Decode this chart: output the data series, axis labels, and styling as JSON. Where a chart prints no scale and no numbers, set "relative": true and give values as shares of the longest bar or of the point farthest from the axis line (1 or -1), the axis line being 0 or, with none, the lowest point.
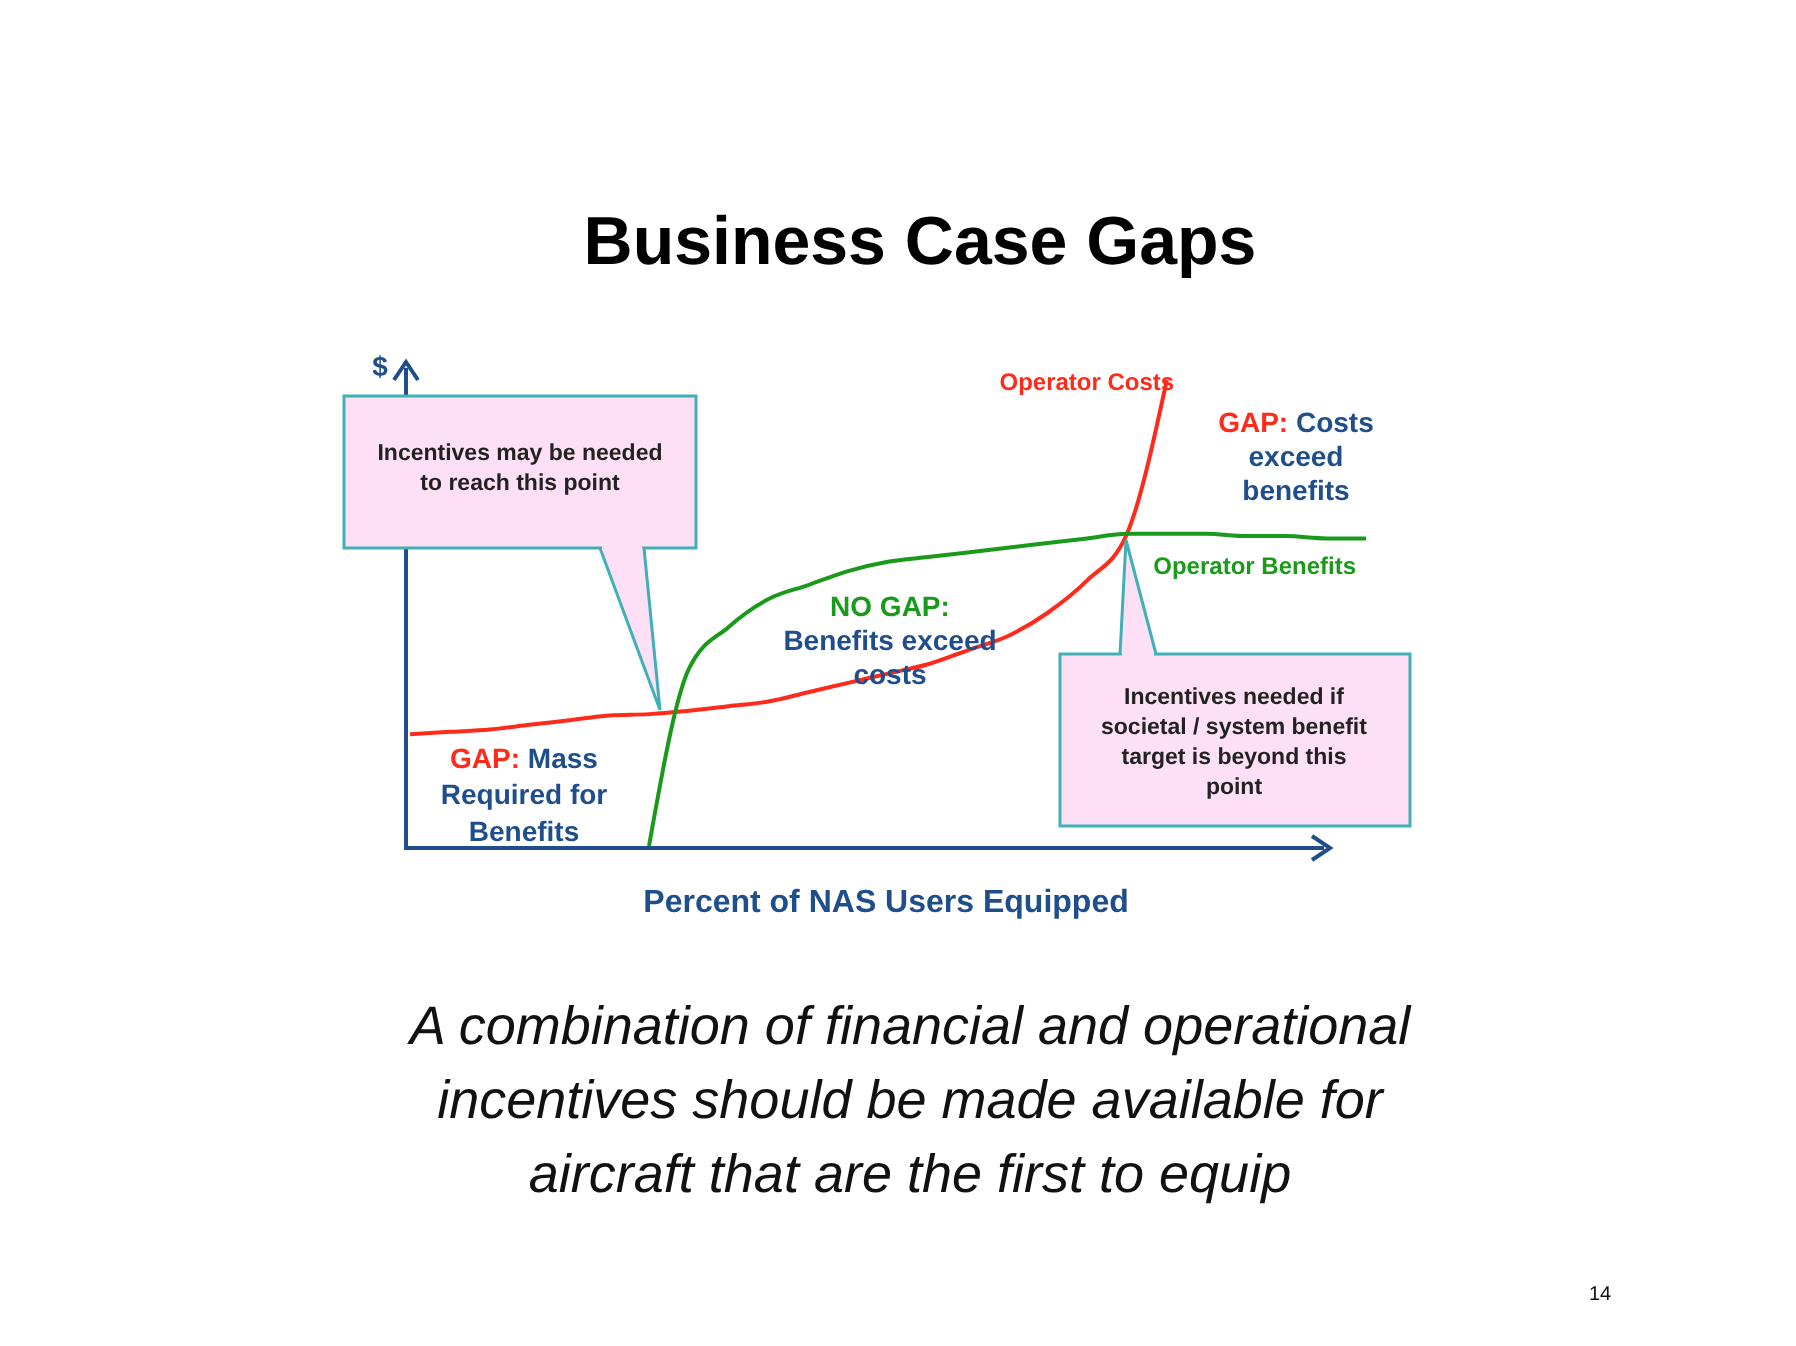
{
  "chart_data": {
    "type": "line",
    "relative": true,
    "title": "Business Case Gaps",
    "xlabel": "Percent of NAS Users Equipped",
    "ylabel": "$",
    "marker": "none",
    "line_style": "solid",
    "categories": [
      null,
      null,
      null,
      null,
      null,
      null,
      null,
      null,
      null,
      null,
      null,
      null,
      null,
      null,
      null,
      null,
      null,
      null,
      null,
      null,
      null,
      null,
      null,
      null,
      null
    ],
    "series": [
      {
        "name": "Operator Costs",
        "color": "#ff2a1a",
        "values": [
          0.24,
          0.245,
          0.25,
          0.26,
          0.27,
          0.28,
          0.283,
          0.29,
          0.3,
          0.31,
          0.33,
          0.35,
          0.37,
          0.39,
          0.42,
          0.45,
          0.5,
          0.57,
          0.67,
          1.0,
          null,
          null,
          null,
          null,
          null
        ]
      },
      {
        "name": "Operator Benefits",
        "color": "#1a9a1a",
        "values": [
          null,
          null,
          null,
          null,
          null,
          null,
          0,
          0.38,
          0.47,
          0.53,
          0.56,
          0.59,
          0.61,
          0.62,
          0.63,
          0.64,
          0.65,
          0.66,
          0.67,
          0.67,
          0.67,
          0.665,
          0.665,
          0.66,
          0.66
        ]
      }
    ],
    "annotations": [
      "Incentives may be needed to reach this point",
      "GAP: Costs exceed benefits",
      "NO GAP: Benefits exceed costs",
      "GAP: Mass Required for Benefits",
      "Incentives needed if societal / system benefit target is beyond this point",
      "A combination of financial and operational incentives should be made available for aircraft that are the first to equip",
      "14"
    ]
  }
}
